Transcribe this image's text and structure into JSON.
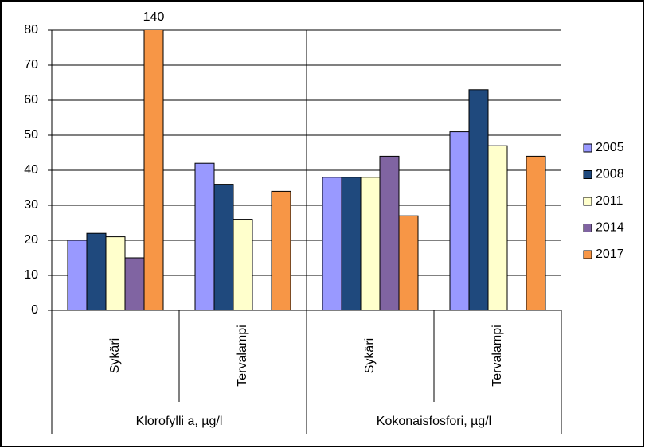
{
  "chart_data": {
    "type": "bar",
    "category_groups": [
      {
        "name": "Klorofylli a, µg/l",
        "categories": [
          "Sykäri",
          "Tervalampi"
        ]
      },
      {
        "name": "Kokonaisfosfori, µg/l",
        "categories": [
          "Sykäri",
          "Tervalampi"
        ]
      }
    ],
    "series": [
      {
        "name": "2005",
        "color": "#9999ff",
        "values": [
          20,
          42,
          38,
          51
        ]
      },
      {
        "name": "2008",
        "color": "#1f497d",
        "values": [
          22,
          36,
          38,
          63
        ]
      },
      {
        "name": "2011",
        "color": "#ffffcc",
        "values": [
          21,
          26,
          38,
          47
        ]
      },
      {
        "name": "2014",
        "color": "#8064a2",
        "values": [
          15,
          null,
          44,
          null
        ]
      },
      {
        "name": "2017",
        "color": "#f79646",
        "values": [
          140,
          34,
          27,
          44
        ],
        "value_labels": [
          "140",
          null,
          null,
          null
        ]
      }
    ],
    "ylim": [
      0,
      80
    ],
    "yticks": [
      0,
      10,
      20,
      30,
      40,
      50,
      60,
      70,
      80
    ],
    "grid": true,
    "legend": "right"
  }
}
